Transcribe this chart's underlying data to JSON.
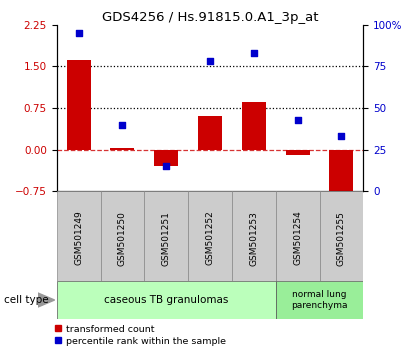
{
  "title": "GDS4256 / Hs.91815.0.A1_3p_at",
  "samples": [
    "GSM501249",
    "GSM501250",
    "GSM501251",
    "GSM501252",
    "GSM501253",
    "GSM501254",
    "GSM501255"
  ],
  "transformed_count": [
    1.62,
    0.02,
    -0.3,
    0.6,
    0.85,
    -0.1,
    -0.85
  ],
  "percentile_rank": [
    95,
    40,
    15,
    78,
    83,
    43,
    33
  ],
  "ylim_left": [
    -0.75,
    2.25
  ],
  "ylim_right": [
    0,
    100
  ],
  "yticks_left": [
    -0.75,
    0,
    0.75,
    1.5,
    2.25
  ],
  "yticks_right": [
    0,
    25,
    50,
    75,
    100
  ],
  "yticklabels_right": [
    "0",
    "25",
    "50",
    "75",
    "100%"
  ],
  "hlines_dotted": [
    0.75,
    1.5
  ],
  "hline_dashed": 0,
  "bar_color": "#cc0000",
  "scatter_color": "#0000cc",
  "bar_width": 0.55,
  "cell_type_groups": [
    {
      "label": "caseous TB granulomas",
      "n_samples": 5,
      "color": "#bbffbb"
    },
    {
      "label": "normal lung\nparenchyma",
      "n_samples": 2,
      "color": "#99ee99"
    }
  ],
  "cell_type_label": "cell type",
  "legend_items": [
    {
      "label": "transformed count",
      "color": "#cc0000"
    },
    {
      "label": "percentile rank within the sample",
      "color": "#0000cc"
    }
  ],
  "tick_label_color_left": "#cc0000",
  "tick_label_color_right": "#0000cc",
  "xlabel_box_color": "#cccccc",
  "figsize": [
    4.2,
    3.54
  ],
  "dpi": 100
}
